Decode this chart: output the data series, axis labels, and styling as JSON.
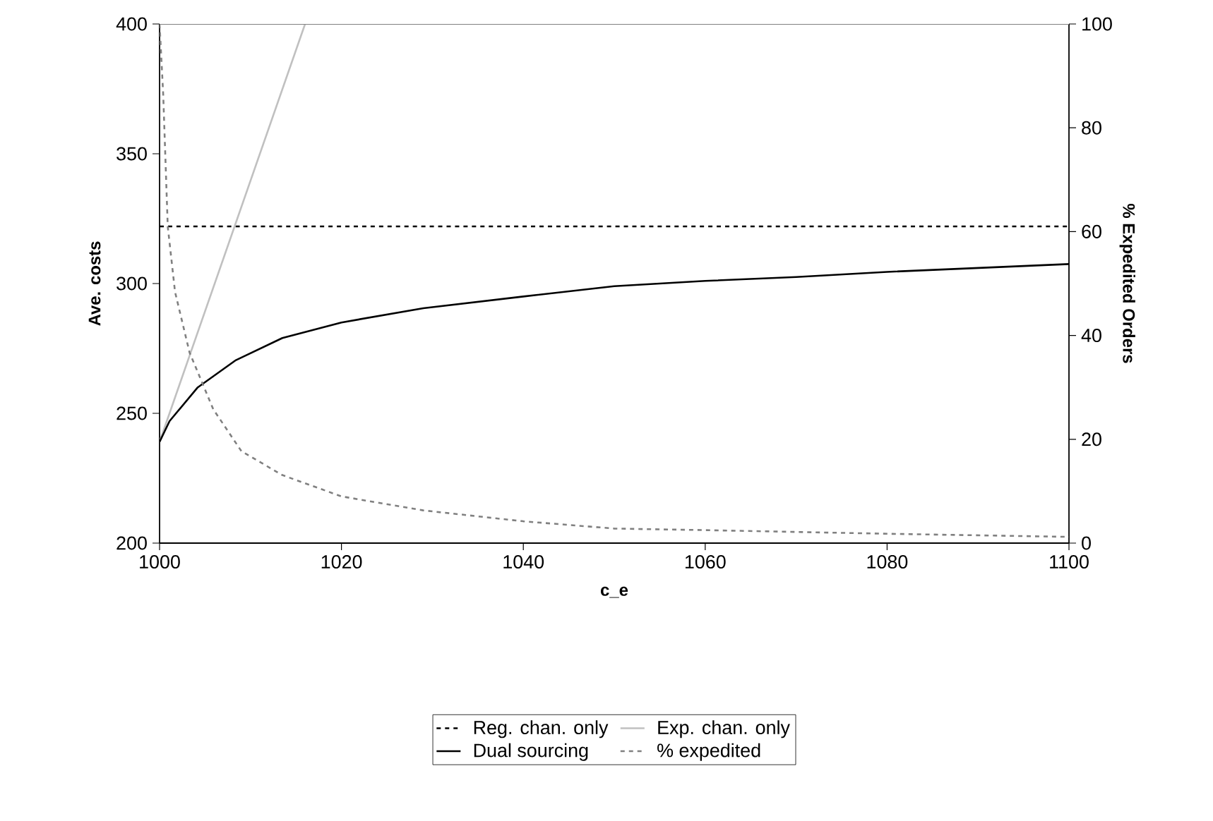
{
  "chart_data": {
    "type": "line",
    "xlabel": "c_e",
    "ylabel": "Ave. costs",
    "y2label": "% Expedited Orders",
    "xlim": [
      1000,
      1100
    ],
    "xticks": [
      1000,
      1020,
      1040,
      1060,
      1080,
      1100
    ],
    "ylim": [
      200,
      400
    ],
    "yticks": [
      200,
      250,
      300,
      350,
      400
    ],
    "y2lim": [
      0,
      100
    ],
    "y2ticks": [
      0,
      20,
      40,
      60,
      80,
      100
    ],
    "grid": false,
    "legend": "bottom",
    "marker": "none",
    "series": [
      {
        "name": "Reg. chan. only",
        "color": "#000000",
        "line_style": "dashed",
        "x": [
          1000,
          1100
        ],
        "values": [
          322,
          322
        ]
      },
      {
        "name": "Exp. chan. only",
        "color": "#c0c0c0",
        "line_style": "solid",
        "x": [
          1000,
          1016
        ],
        "values": [
          239,
          400
        ]
      },
      {
        "name": "Dual sourcing",
        "color": "#000000",
        "line_style": "solid",
        "x": [
          1000,
          1001.1,
          1004.2,
          1008.4,
          1013.5,
          1020,
          1029,
          1040,
          1050,
          1060,
          1070,
          1080,
          1100
        ],
        "values": [
          239,
          247,
          260,
          270.5,
          279,
          285,
          290.5,
          295,
          299,
          301,
          302.5,
          304.5,
          307.5
        ]
      },
      {
        "name": "% expedited",
        "color": "#808080",
        "line_style": "dashed",
        "axis": "y2",
        "x": [
          1000,
          1000.4,
          1000.9,
          1001.7,
          1003.3,
          1005.9,
          1009,
          1013.5,
          1020,
          1029,
          1040,
          1050,
          1060,
          1080,
          1100
        ],
        "values": [
          100,
          86.4,
          61,
          48.4,
          36.7,
          25.8,
          17.7,
          13.1,
          9,
          6.3,
          4.2,
          2.8,
          2.5,
          1.8,
          1.2
        ]
      }
    ]
  }
}
